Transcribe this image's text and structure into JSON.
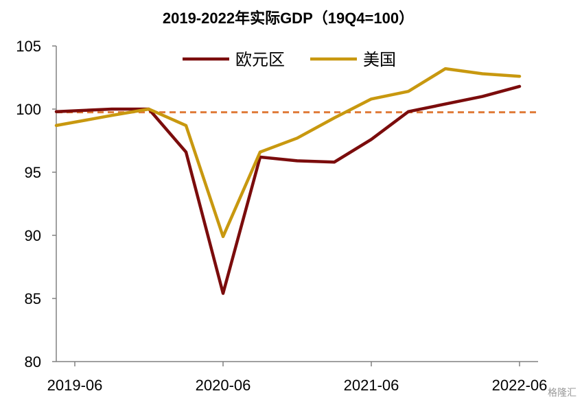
{
  "chart_data": {
    "type": "line",
    "title": "2019-2022年实际GDP（19Q4=100）",
    "xlabel": "",
    "ylabel": "",
    "x": [
      "2019Q2",
      "2019Q3",
      "2019Q4",
      "2020Q1",
      "2020Q2",
      "2020Q3",
      "2020Q4",
      "2021Q1",
      "2021Q2",
      "2021Q3",
      "2021Q4",
      "2022Q1",
      "2022Q2"
    ],
    "x_tick_labels": [
      "2019-06",
      "2020-06",
      "2021-06",
      "2022-06"
    ],
    "ylim": [
      80,
      105
    ],
    "y_ticks": [
      80,
      85,
      90,
      95,
      100,
      105
    ],
    "legend_position": "top",
    "grid": false,
    "series": [
      {
        "name": "欧元区",
        "color": "#7b0c0c",
        "values": [
          99.8,
          100.0,
          100.0,
          96.6,
          85.4,
          96.2,
          95.9,
          95.8,
          97.6,
          99.8,
          100.4,
          101.0,
          101.8
        ]
      },
      {
        "name": "美国",
        "color": "#c8980f",
        "values": [
          98.7,
          99.5,
          100.0,
          98.7,
          89.9,
          96.6,
          97.7,
          99.3,
          100.8,
          101.4,
          103.2,
          102.8,
          102.6
        ]
      }
    ],
    "reference_line": {
      "value": 99.75,
      "color": "#e07b39",
      "style": "dashed"
    }
  },
  "watermark": "格隆汇"
}
